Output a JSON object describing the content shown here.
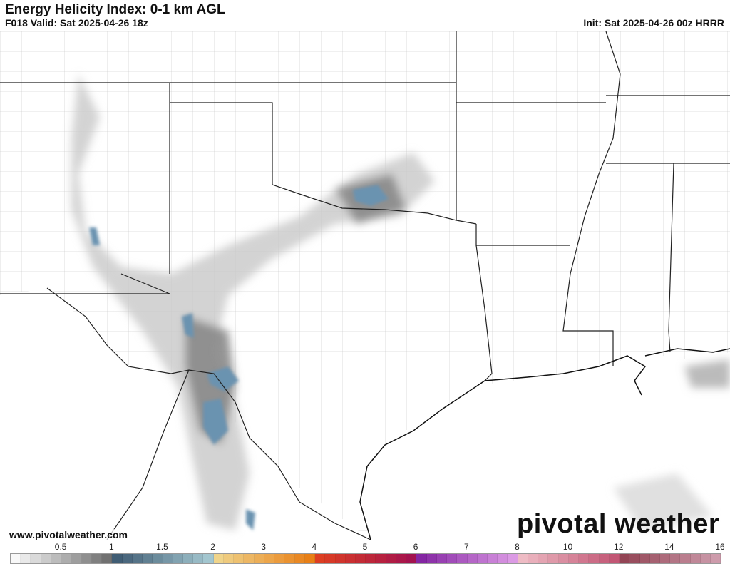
{
  "header": {
    "title": "Energy Helicity Index: 0-1 km AGL",
    "valid": "F018 Valid: Sat 2025-04-26 18z",
    "init": "Init: Sat 2025-04-26 00z HRRR"
  },
  "footer": {
    "website": "www.pivotalweather.com",
    "brand": "pivotal weather"
  },
  "colorbar": {
    "ticks": [
      "0.5",
      "1",
      "1.5",
      "2",
      "3",
      "4",
      "5",
      "6",
      "7",
      "8",
      "10",
      "12",
      "14",
      "16"
    ],
    "tick_values": [
      0.5,
      1,
      1.5,
      2,
      3,
      4,
      5,
      6,
      7,
      8,
      10,
      12,
      14,
      16
    ],
    "range": [
      0,
      16
    ],
    "anchors": [
      {
        "v": 0,
        "c": "#ffffff"
      },
      {
        "v": 1,
        "c": "#6a6a6a"
      },
      {
        "v": 1.01,
        "c": "#3c5870"
      },
      {
        "v": 2,
        "c": "#a8ccd4"
      },
      {
        "v": 2.01,
        "c": "#f0d890"
      },
      {
        "v": 4,
        "c": "#e87a10"
      },
      {
        "v": 4.01,
        "c": "#e04020"
      },
      {
        "v": 6,
        "c": "#a01050"
      },
      {
        "v": 6.01,
        "c": "#8020a0"
      },
      {
        "v": 8,
        "c": "#e0a0e8"
      },
      {
        "v": 8.01,
        "c": "#f0c0c8"
      },
      {
        "v": 12,
        "c": "#c05070"
      },
      {
        "v": 12.01,
        "c": "#904050"
      },
      {
        "v": 16,
        "c": "#d0a0b0"
      }
    ]
  },
  "map": {
    "border_color": "#222222",
    "county_color": "#9a9a9a",
    "shade_color": "#6a6a6a",
    "high_color": "#5a88a8"
  }
}
